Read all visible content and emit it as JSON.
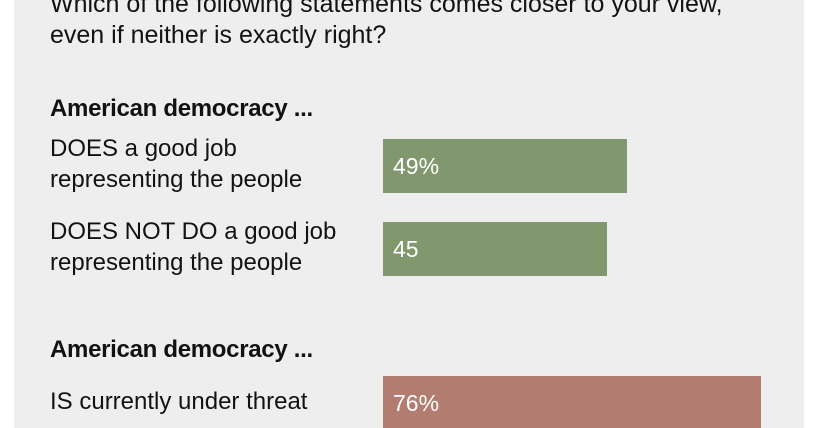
{
  "question": "Which of the following statements comes closer to your view, even if neither is exactly right?",
  "colors": {
    "panel": "#eeeeee",
    "positive": "#81986f",
    "negative": "#b37c71",
    "text": "#121212",
    "value_text": "#ffffff"
  },
  "groups": [
    {
      "heading": "American democracy ...",
      "items": [
        {
          "label": "DOES a good job representing the people",
          "value": 49,
          "display": "49%",
          "color": "#81986f"
        },
        {
          "label": "DOES NOT DO a good job representing the people",
          "value": 45,
          "display": "45",
          "color": "#81986f"
        }
      ]
    },
    {
      "heading": "American democracy ...",
      "items": [
        {
          "label": "IS currently under threat",
          "value": 76,
          "display": "76%",
          "color": "#b37c71"
        }
      ]
    }
  ],
  "chart_data": {
    "type": "bar",
    "orientation": "horizontal",
    "title": "Which of the following statements comes closer to your view, even if neither is exactly right?",
    "unit": "%",
    "xlim": [
      0,
      76
    ],
    "groups": [
      {
        "name": "American democracy ...",
        "categories": [
          "DOES a good job representing the people",
          "DOES NOT DO a good job representing the people"
        ],
        "values": [
          49,
          45
        ]
      },
      {
        "name": "American democracy ...",
        "categories": [
          "IS currently under threat"
        ],
        "values": [
          76
        ]
      }
    ]
  }
}
